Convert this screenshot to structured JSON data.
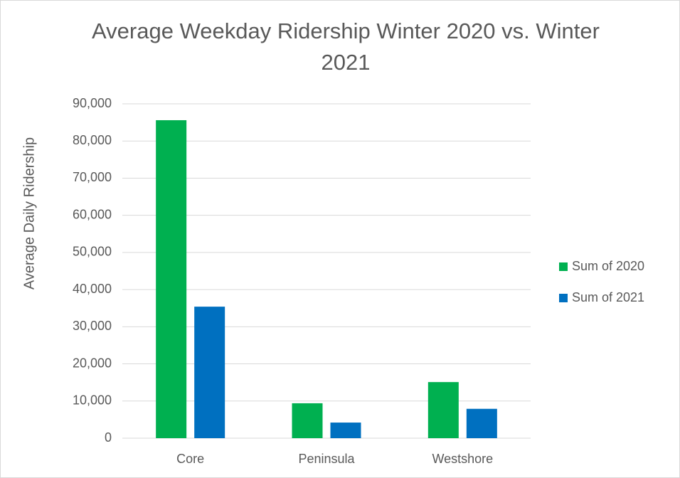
{
  "chart_data": {
    "type": "bar",
    "title": "Average Weekday Ridership Winter 2020 vs. Winter 2021",
    "y_label": "Average Daily Ridership",
    "categories": [
      "Core",
      "Peninsula",
      "Westshore"
    ],
    "series": [
      {
        "name": "Sum of 2020",
        "color": "#00b050",
        "values": [
          85600,
          9400,
          15100
        ]
      },
      {
        "name": "Sum of 2021",
        "color": "#0070c0",
        "values": [
          35400,
          4200,
          7900
        ]
      }
    ],
    "ylim": [
      0,
      90000
    ],
    "yticks": [
      0,
      {
        "value": 10000,
        "label": "10,000"
      },
      {
        "value": 20000,
        "label": "20,000"
      },
      {
        "value": 30000,
        "label": "30,000"
      },
      {
        "value": 40000,
        "label": "40,000"
      },
      {
        "value": 50000,
        "label": "50,000"
      },
      {
        "value": 60000,
        "label": "60,000"
      },
      {
        "value": 70000,
        "label": "70,000"
      },
      {
        "value": 80000,
        "label": "80,000"
      },
      {
        "value": 90000,
        "label": "90,000"
      }
    ],
    "grid": true,
    "legend": "right"
  }
}
